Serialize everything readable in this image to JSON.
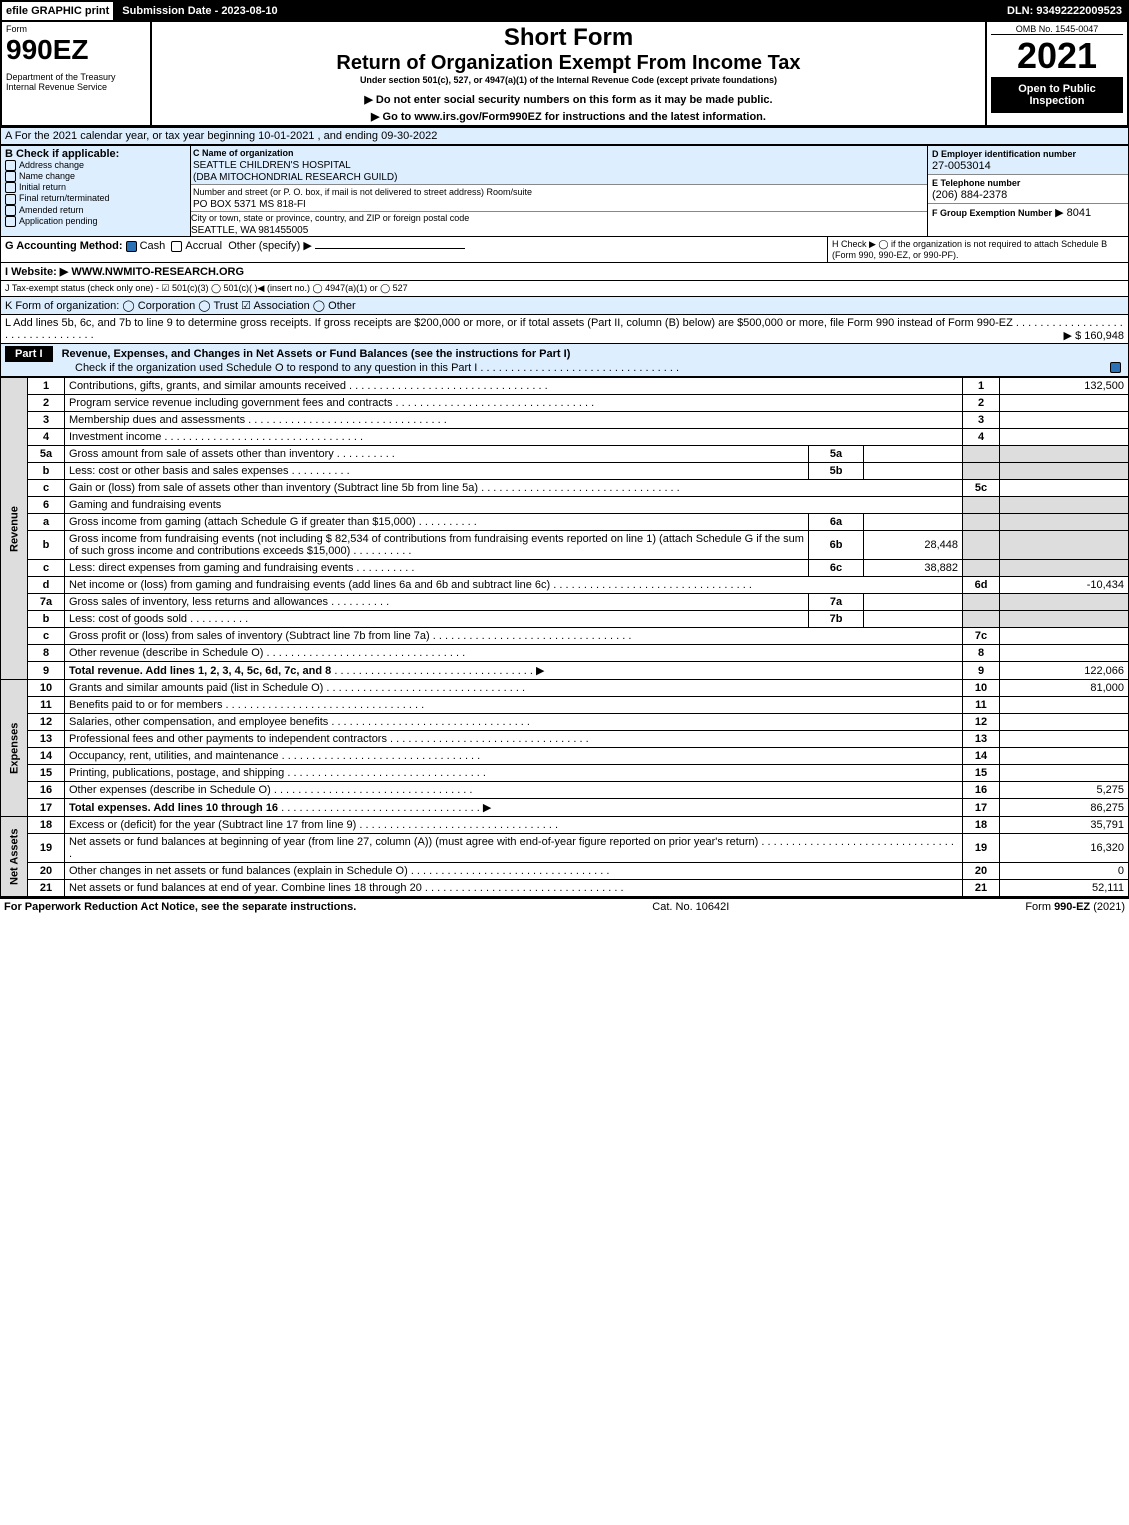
{
  "topbar": {
    "efile": "efile GRAPHIC print",
    "submission": "Submission Date - 2023-08-10",
    "dln": "DLN: 93492222009523"
  },
  "header": {
    "form_label": "Form",
    "form_no": "990EZ",
    "dept": "Department of the Treasury\nInternal Revenue Service",
    "title1": "Short Form",
    "title2": "Return of Organization Exempt From Income Tax",
    "subtitle": "Under section 501(c), 527, or 4947(a)(1) of the Internal Revenue Code (except private foundations)",
    "note1": "▶ Do not enter social security numbers on this form as it may be made public.",
    "note2": "▶ Go to www.irs.gov/Form990EZ for instructions and the latest information.",
    "omb": "OMB No. 1545-0047",
    "year": "2021",
    "open": "Open to Public Inspection"
  },
  "lineA": "A  For the 2021 calendar year, or tax year beginning 10-01-2021 , and ending 09-30-2022",
  "boxB": {
    "label": "B  Check if applicable:",
    "items": [
      "Address change",
      "Name change",
      "Initial return",
      "Final return/terminated",
      "Amended return",
      "Application pending"
    ],
    "c_label": "C Name of organization",
    "c_name": "SEATTLE CHILDREN'S HOSPITAL\n(DBA MITOCHONDRIAL RESEARCH GUILD)",
    "c_addr_label": "Number and street (or P. O. box, if mail is not delivered to street address)     Room/suite",
    "c_addr": "PO BOX 5371 MS 818-FI",
    "c_city_label": "City or town, state or province, country, and ZIP or foreign postal code",
    "c_city": "SEATTLE, WA  981455005",
    "d_label": "D Employer identification number",
    "d_val": "27-0053014",
    "e_label": "E Telephone number",
    "e_val": "(206) 884-2378",
    "f_label": "F Group Exemption Number",
    "f_val": "▶ 8041"
  },
  "rowGH": {
    "g_label": "G Accounting Method:",
    "g_cash": "Cash",
    "g_accr": "Accrual",
    "g_other": "Other (specify) ▶",
    "h_text": "H   Check ▶  ◯  if the organization is not required to attach Schedule B (Form 990, 990-EZ, or 990-PF)."
  },
  "rowI": "I Website: ▶ WWW.NWMITO-RESEARCH.ORG",
  "rowJ": "J Tax-exempt status (check only one) -  ☑ 501(c)(3)  ◯ 501(c)(  )◀ (insert no.)  ◯ 4947(a)(1) or  ◯ 527",
  "rowK": "K Form of organization:   ◯ Corporation   ◯ Trust   ☑ Association   ◯ Other",
  "rowL": {
    "text": "L Add lines 5b, 6c, and 7b to line 9 to determine gross receipts. If gross receipts are $200,000 or more, or if total assets (Part II, column (B) below) are $500,000 or more, file Form 990 instead of Form 990-EZ",
    "amount": "▶ $ 160,948"
  },
  "partI": {
    "label": "Part I",
    "title": "Revenue, Expenses, and Changes in Net Assets or Fund Balances (see the instructions for Part I)",
    "check": "Check if the organization used Schedule O to respond to any question in this Part I"
  },
  "sections": {
    "rev": "Revenue",
    "exp": "Expenses",
    "net": "Net Assets"
  },
  "revenue": [
    {
      "n": "1",
      "t": "Contributions, gifts, grants, and similar amounts received",
      "r": "1",
      "v": "132,500"
    },
    {
      "n": "2",
      "t": "Program service revenue including government fees and contracts",
      "r": "2",
      "v": ""
    },
    {
      "n": "3",
      "t": "Membership dues and assessments",
      "r": "3",
      "v": ""
    },
    {
      "n": "4",
      "t": "Investment income",
      "r": "4",
      "v": ""
    },
    {
      "n": "5a",
      "t": "Gross amount from sale of assets other than inventory",
      "m": "5a",
      "mv": ""
    },
    {
      "n": "b",
      "t": "Less: cost or other basis and sales expenses",
      "m": "5b",
      "mv": ""
    },
    {
      "n": "c",
      "t": "Gain or (loss) from sale of assets other than inventory (Subtract line 5b from line 5a)",
      "r": "5c",
      "v": ""
    },
    {
      "n": "6",
      "t": "Gaming and fundraising events"
    },
    {
      "n": "a",
      "t": "Gross income from gaming (attach Schedule G if greater than $15,000)",
      "m": "6a",
      "mv": ""
    },
    {
      "n": "b",
      "t": "Gross income from fundraising events (not including $  82,534         of contributions from fundraising events reported on line 1) (attach Schedule G if the sum of such gross income and contributions exceeds $15,000)",
      "m": "6b",
      "mv": "28,448"
    },
    {
      "n": "c",
      "t": "Less: direct expenses from gaming and fundraising events",
      "m": "6c",
      "mv": "38,882"
    },
    {
      "n": "d",
      "t": "Net income or (loss) from gaming and fundraising events (add lines 6a and 6b and subtract line 6c)",
      "r": "6d",
      "v": "-10,434"
    },
    {
      "n": "7a",
      "t": "Gross sales of inventory, less returns and allowances",
      "m": "7a",
      "mv": ""
    },
    {
      "n": "b",
      "t": "Less: cost of goods sold",
      "m": "7b",
      "mv": ""
    },
    {
      "n": "c",
      "t": "Gross profit or (loss) from sales of inventory (Subtract line 7b from line 7a)",
      "r": "7c",
      "v": ""
    },
    {
      "n": "8",
      "t": "Other revenue (describe in Schedule O)",
      "r": "8",
      "v": ""
    },
    {
      "n": "9",
      "t": "Total revenue. Add lines 1, 2, 3, 4, 5c, 6d, 7c, and 8",
      "r": "9",
      "v": "122,066",
      "bold": true,
      "arrow": true
    }
  ],
  "expenses": [
    {
      "n": "10",
      "t": "Grants and similar amounts paid (list in Schedule O)",
      "r": "10",
      "v": "81,000"
    },
    {
      "n": "11",
      "t": "Benefits paid to or for members",
      "r": "11",
      "v": ""
    },
    {
      "n": "12",
      "t": "Salaries, other compensation, and employee benefits",
      "r": "12",
      "v": ""
    },
    {
      "n": "13",
      "t": "Professional fees and other payments to independent contractors",
      "r": "13",
      "v": ""
    },
    {
      "n": "14",
      "t": "Occupancy, rent, utilities, and maintenance",
      "r": "14",
      "v": ""
    },
    {
      "n": "15",
      "t": "Printing, publications, postage, and shipping",
      "r": "15",
      "v": ""
    },
    {
      "n": "16",
      "t": "Other expenses (describe in Schedule O)",
      "r": "16",
      "v": "5,275"
    },
    {
      "n": "17",
      "t": "Total expenses. Add lines 10 through 16",
      "r": "17",
      "v": "86,275",
      "bold": true,
      "arrow": true
    }
  ],
  "netassets": [
    {
      "n": "18",
      "t": "Excess or (deficit) for the year (Subtract line 17 from line 9)",
      "r": "18",
      "v": "35,791"
    },
    {
      "n": "19",
      "t": "Net assets or fund balances at beginning of year (from line 27, column (A)) (must agree with end-of-year figure reported on prior year's return)",
      "r": "19",
      "v": "16,320"
    },
    {
      "n": "20",
      "t": "Other changes in net assets or fund balances (explain in Schedule O)",
      "r": "20",
      "v": "0"
    },
    {
      "n": "21",
      "t": "Net assets or fund balances at end of year. Combine lines 18 through 20",
      "r": "21",
      "v": "52,111"
    }
  ],
  "footer": {
    "left": "For Paperwork Reduction Act Notice, see the separate instructions.",
    "center": "Cat. No. 10642I",
    "right_a": "Form ",
    "right_b": "990-EZ",
    "right_c": " (2021)"
  }
}
